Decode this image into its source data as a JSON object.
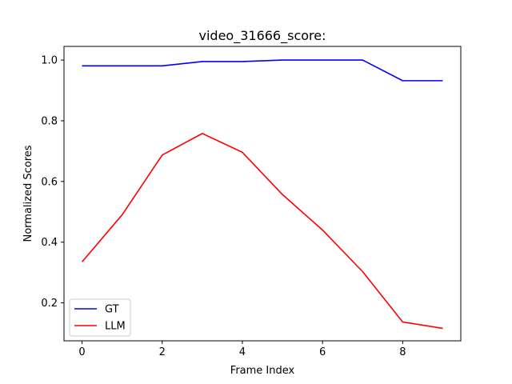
{
  "chart_data": {
    "type": "line",
    "title": "video_31666_score:",
    "xlabel": "Frame Index",
    "ylabel": "Normalized Scores",
    "x": [
      0,
      1,
      2,
      3,
      4,
      5,
      6,
      7,
      8,
      9
    ],
    "xlim": [
      -0.45,
      9.45
    ],
    "ylim": [
      0.075,
      1.045
    ],
    "xticks": [
      0,
      2,
      4,
      6,
      8
    ],
    "yticks": [
      0.2,
      0.4,
      0.6,
      0.8,
      1.0
    ],
    "xtick_labels": [
      "0",
      "2",
      "4",
      "6",
      "8"
    ],
    "ytick_labels": [
      "0.2",
      "0.4",
      "0.6",
      "0.8",
      "1.0"
    ],
    "grid": false,
    "legend_position": "lower-left",
    "series": [
      {
        "name": "GT",
        "color": "#0000ff",
        "values": [
          0.981,
          0.981,
          0.981,
          0.995,
          0.995,
          1.0,
          1.0,
          1.0,
          0.932,
          0.932
        ]
      },
      {
        "name": "LLM",
        "color": "#ff0000",
        "values": [
          0.335,
          0.49,
          0.687,
          0.758,
          0.696,
          0.557,
          0.44,
          0.303,
          0.137,
          0.116
        ]
      }
    ]
  }
}
